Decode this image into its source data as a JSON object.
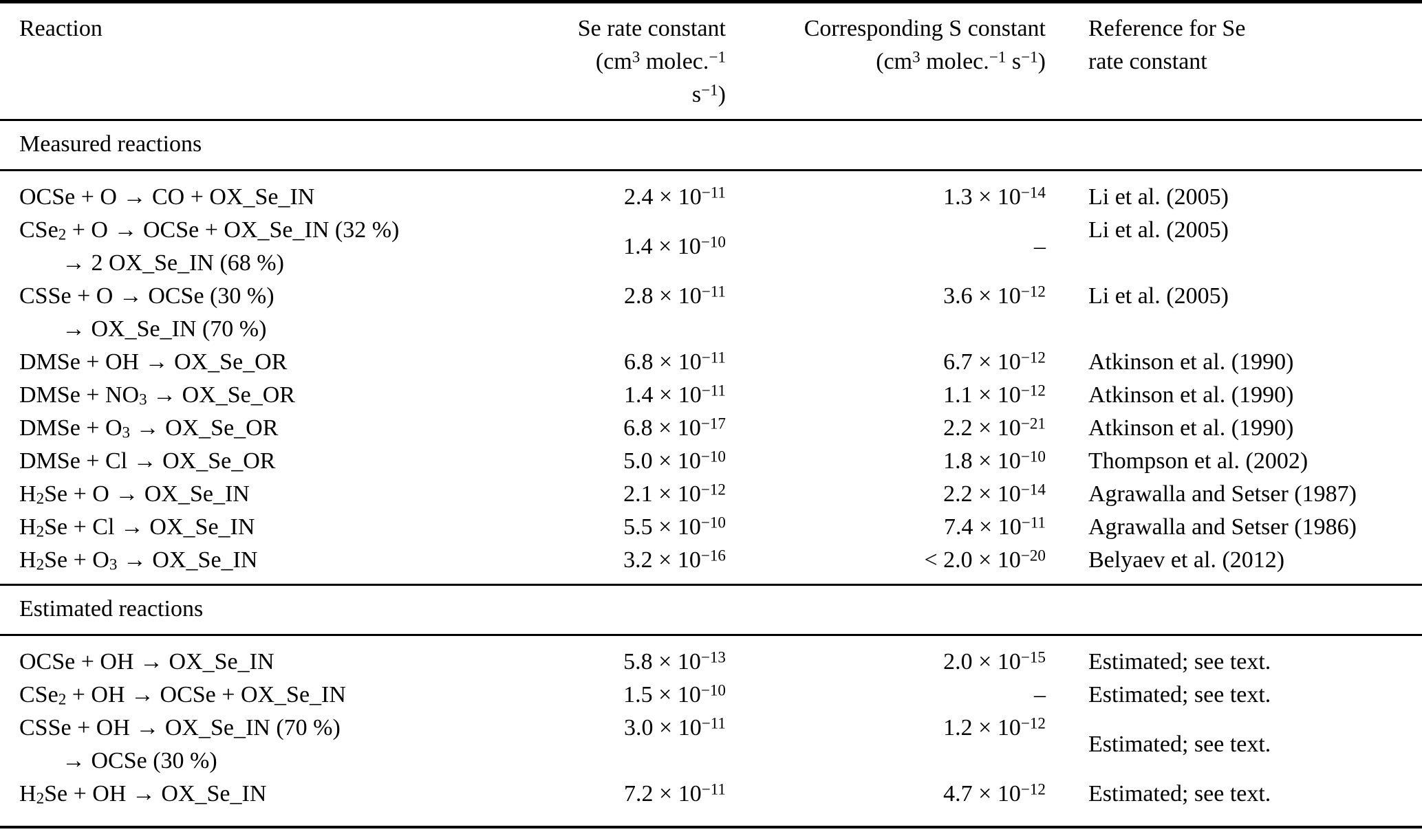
{
  "table": {
    "header": {
      "reaction": "Reaction",
      "se_line1": "Se rate constant",
      "se_line2": "(cm^{3} molec.^{−1} s^{−1})",
      "s_line1": "Corresponding S constant",
      "s_line2": "(cm^{3} molec.^{−1} s^{−1})",
      "ref_line1": "Reference for Se",
      "ref_line2": "rate constant"
    },
    "sections": [
      {
        "title": "Measured reactions",
        "rows": [
          {
            "reaction_lines": [
              "OCSe + O → CO + OX_Se_IN"
            ],
            "se": "2.4 × 10^{−11}",
            "s": "1.3 × 10^{−14}",
            "ref": "Li et al. (2005)"
          },
          {
            "reaction_lines": [
              "CSe_{2} + O → OCSe + OX_Se_IN (32 %)",
              "→ 2 OX_Se_IN (68 %)"
            ],
            "se": "1.4 × 10^{−10}",
            "s": "–",
            "ref": "Li et al. (2005)",
            "se_valign": "middle",
            "s_valign": "middle",
            "ref_valign": "top"
          },
          {
            "reaction_lines": [
              "CSSe + O → OCSe (30 %)",
              "→ OX_Se_IN (70 %)"
            ],
            "se": "2.8 × 10^{−11}",
            "s": "3.6 × 10^{−12}",
            "ref": "Li et al. (2005)"
          },
          {
            "reaction_lines": [
              "DMSe + OH → OX_Se_OR"
            ],
            "se": "6.8 × 10^{−11}",
            "s": "6.7 × 10^{−12}",
            "ref": "Atkinson et al. (1990)"
          },
          {
            "reaction_lines": [
              "DMSe + NO_{3} → OX_Se_OR"
            ],
            "se": "1.4 × 10^{−11}",
            "s": "1.1 × 10^{−12}",
            "ref": "Atkinson et al. (1990)"
          },
          {
            "reaction_lines": [
              "DMSe + O_{3} → OX_Se_OR"
            ],
            "se": "6.8 × 10^{−17}",
            "s": "2.2 × 10^{−21}",
            "ref": "Atkinson et al. (1990)"
          },
          {
            "reaction_lines": [
              "DMSe + Cl → OX_Se_OR"
            ],
            "se": "5.0 × 10^{−10}",
            "s": "1.8 × 10^{−10}",
            "ref": "Thompson et al. (2002)"
          },
          {
            "reaction_lines": [
              "H_{2}Se + O → OX_Se_IN"
            ],
            "se": "2.1 × 10^{−12}",
            "s": "2.2 × 10^{−14}",
            "ref": "Agrawalla and Setser (1987)"
          },
          {
            "reaction_lines": [
              "H_{2}Se + Cl → OX_Se_IN"
            ],
            "se": "5.5 × 10^{−10}",
            "s": "7.4 × 10^{−11}",
            "ref": "Agrawalla and Setser (1986)"
          },
          {
            "reaction_lines": [
              "H_{2}Se + O_{3} → OX_Se_IN"
            ],
            "se": "3.2 × 10^{−16}",
            "s": "< 2.0 × 10^{−20}",
            "ref": "Belyaev et al. (2012)"
          }
        ]
      },
      {
        "title": "Estimated reactions",
        "rows": [
          {
            "reaction_lines": [
              "OCSe + OH → OX_Se_IN"
            ],
            "se": "5.8 × 10^{−13}",
            "s": "2.0 × 10^{−15}",
            "ref": "Estimated; see text."
          },
          {
            "reaction_lines": [
              "CSe_{2} + OH → OCSe + OX_Se_IN"
            ],
            "se": "1.5 × 10^{−10}",
            "s": "–",
            "ref": "Estimated; see text."
          },
          {
            "reaction_lines": [
              "CSSe + OH → OX_Se_IN (70 %)",
              "→ OCSe (30 %)"
            ],
            "se": "3.0 × 10^{−11}",
            "s": "1.2 × 10^{−12}",
            "ref": "Estimated; see text.",
            "ref_valign": "middle"
          },
          {
            "reaction_lines": [
              "H_{2}Se + OH → OX_Se_IN"
            ],
            "se": "7.2 × 10^{−11}",
            "s": "4.7 × 10^{−12}",
            "ref": "Estimated; see text."
          }
        ]
      }
    ]
  }
}
